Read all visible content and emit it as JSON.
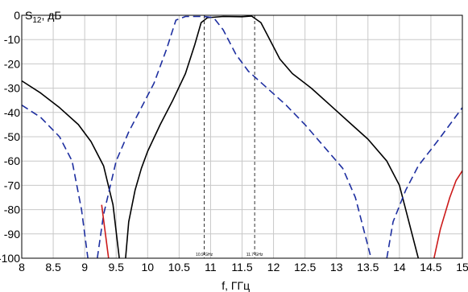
{
  "chart_data": {
    "type": "line",
    "title": "",
    "xlabel": "f, ГГц",
    "ylabel_main": "S",
    "ylabel_sub": "12",
    "ylabel_tail": ", дБ",
    "xlim": [
      8,
      15
    ],
    "ylim": [
      -100,
      0
    ],
    "grid": true,
    "x_ticks": [
      8,
      8.5,
      9,
      9.5,
      10,
      10.5,
      11,
      11.5,
      12,
      12.5,
      13,
      13.5,
      14,
      14.5,
      15
    ],
    "x_tick_labels": [
      "8",
      "8.5",
      "9",
      "9.5",
      "10",
      "10.5",
      "11",
      "11.5",
      "12",
      "12.5",
      "13",
      "13.5",
      "14",
      "14.5",
      "15"
    ],
    "y_ticks": [
      0,
      -10,
      -20,
      -30,
      -40,
      -50,
      -60,
      -70,
      -80,
      -90,
      -100
    ],
    "y_tick_labels": [
      "0",
      "-10",
      "-20",
      "-30",
      "-40",
      "-50",
      "-60",
      "-70",
      "-80",
      "-90",
      "-100"
    ],
    "markers": [
      {
        "x": 10.9,
        "label": "10.9 GHz"
      },
      {
        "x": 11.7,
        "label": "11.7 GHz"
      }
    ],
    "series": [
      {
        "color": "#000000",
        "dash": "solid",
        "segments": [
          [
            [
              8,
              -27
            ],
            [
              8.3,
              -32
            ],
            [
              8.6,
              -38
            ],
            [
              8.9,
              -45
            ],
            [
              9.1,
              -52
            ],
            [
              9.3,
              -62
            ],
            [
              9.45,
              -78
            ],
            [
              9.55,
              -100
            ]
          ],
          [
            [
              9.65,
              -100
            ],
            [
              9.7,
              -85
            ],
            [
              9.8,
              -72
            ],
            [
              9.9,
              -63
            ],
            [
              10.0,
              -56
            ],
            [
              10.2,
              -45
            ],
            [
              10.4,
              -35
            ],
            [
              10.6,
              -24
            ],
            [
              10.75,
              -12
            ],
            [
              10.85,
              -3
            ],
            [
              10.95,
              -1
            ],
            [
              11.2,
              -0.5
            ],
            [
              11.5,
              -0.6
            ],
            [
              11.65,
              -0.3
            ],
            [
              11.8,
              -3
            ],
            [
              11.9,
              -8
            ],
            [
              12.1,
              -18
            ],
            [
              12.3,
              -24
            ],
            [
              12.6,
              -30
            ],
            [
              12.9,
              -37
            ],
            [
              13.2,
              -44
            ],
            [
              13.5,
              -51
            ],
            [
              13.8,
              -60
            ],
            [
              14.0,
              -70
            ],
            [
              14.1,
              -80
            ],
            [
              14.2,
              -90
            ],
            [
              14.3,
              -100
            ]
          ]
        ]
      },
      {
        "color": "#1e2fa0",
        "dash": "dashed",
        "segments": [
          [
            [
              8,
              -37
            ],
            [
              8.3,
              -42
            ],
            [
              8.6,
              -50
            ],
            [
              8.8,
              -60
            ],
            [
              8.95,
              -80
            ],
            [
              9.05,
              -100
            ]
          ],
          [
            [
              9.2,
              -100
            ],
            [
              9.3,
              -82
            ],
            [
              9.5,
              -60
            ],
            [
              9.7,
              -48
            ],
            [
              9.9,
              -38
            ],
            [
              10.1,
              -28
            ],
            [
              10.3,
              -14
            ],
            [
              10.45,
              -2
            ],
            [
              10.6,
              -0.5
            ],
            [
              10.9,
              -0.5
            ],
            [
              11.05,
              -1
            ],
            [
              11.2,
              -6
            ],
            [
              11.4,
              -16
            ],
            [
              11.6,
              -23
            ],
            [
              11.9,
              -30
            ],
            [
              12.2,
              -37
            ],
            [
              12.5,
              -45
            ],
            [
              12.8,
              -54
            ],
            [
              13.1,
              -63
            ],
            [
              13.3,
              -75
            ],
            [
              13.45,
              -90
            ],
            [
              13.55,
              -100
            ]
          ],
          [
            [
              13.8,
              -100
            ],
            [
              13.9,
              -85
            ],
            [
              14.1,
              -72
            ],
            [
              14.3,
              -62
            ],
            [
              14.6,
              -52
            ],
            [
              14.8,
              -45
            ],
            [
              15.0,
              -38
            ]
          ]
        ]
      },
      {
        "color": "#cc1a1a",
        "dash": "solid",
        "segments": [
          [
            [
              9.27,
              -78
            ],
            [
              9.32,
              -88
            ],
            [
              9.38,
              -100
            ]
          ],
          [
            [
              14.55,
              -100
            ],
            [
              14.65,
              -88
            ],
            [
              14.8,
              -75
            ],
            [
              14.9,
              -68
            ],
            [
              15.0,
              -64
            ]
          ]
        ]
      }
    ]
  }
}
